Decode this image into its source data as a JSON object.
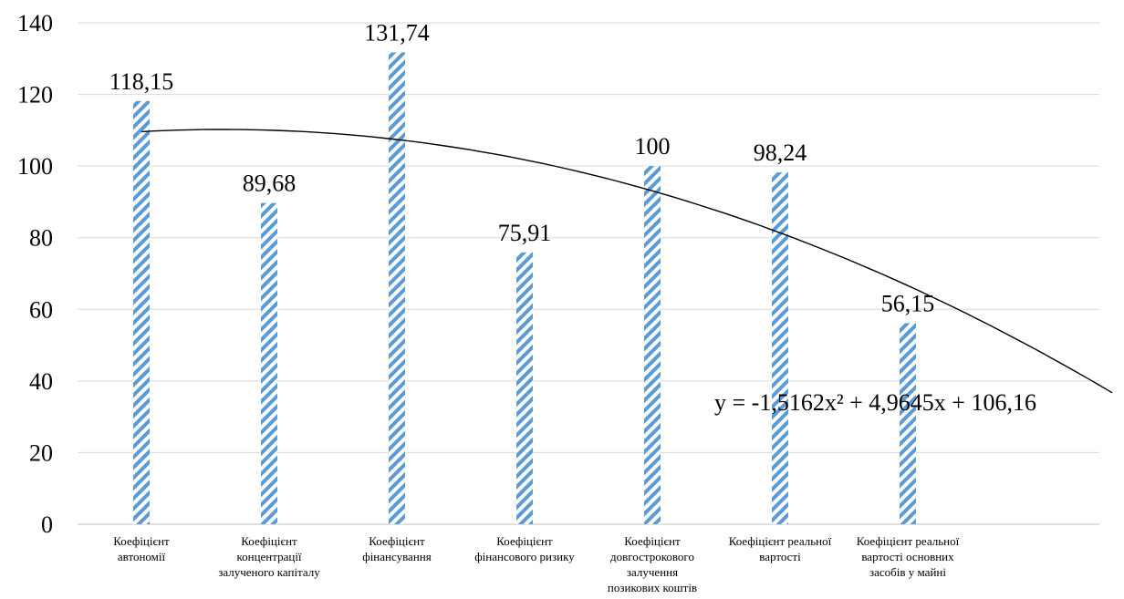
{
  "chart_data": {
    "type": "bar",
    "title": "",
    "xlabel": "",
    "ylabel": "",
    "ylim": [
      0,
      140
    ],
    "yticks": [
      0,
      20,
      40,
      60,
      80,
      100,
      120,
      140
    ],
    "grid": true,
    "legend": "none",
    "bar_fill": "diagonal-stripes",
    "bar_color": "#5B9BD5",
    "categories": [
      [
        "Коефіцієнт",
        "автономії"
      ],
      [
        "Коефіцієнт",
        "концентрації",
        "залученого капіталу"
      ],
      [
        "Коефіцієнт",
        "фінансування"
      ],
      [
        "Коефіцієнт",
        "фінансового ризику"
      ],
      [
        "Коефіцієнт",
        "довгострокового",
        "залучення",
        "позикових коштів"
      ],
      [
        "Коефіцієнт реальної",
        "вартості"
      ],
      [
        "Коефіцієнт реальної",
        "вартості основних",
        "засобів у майні"
      ]
    ],
    "values": [
      118.15,
      89.68,
      131.74,
      75.91,
      100,
      98.24,
      56.15
    ],
    "data_labels": [
      "118,15",
      "89,68",
      "131,74",
      "75,91",
      "100",
      "98,24",
      "56,15"
    ],
    "trendline": {
      "type": "polynomial",
      "order": 2,
      "coefficients": {
        "a": -1.5162,
        "b": 4.9645,
        "c": 106.16
      },
      "x_range": [
        0.5,
        8.5
      ],
      "equation_label": "y = -1,5162x² + 4,9645x + 106,16",
      "color": "#000000"
    }
  }
}
